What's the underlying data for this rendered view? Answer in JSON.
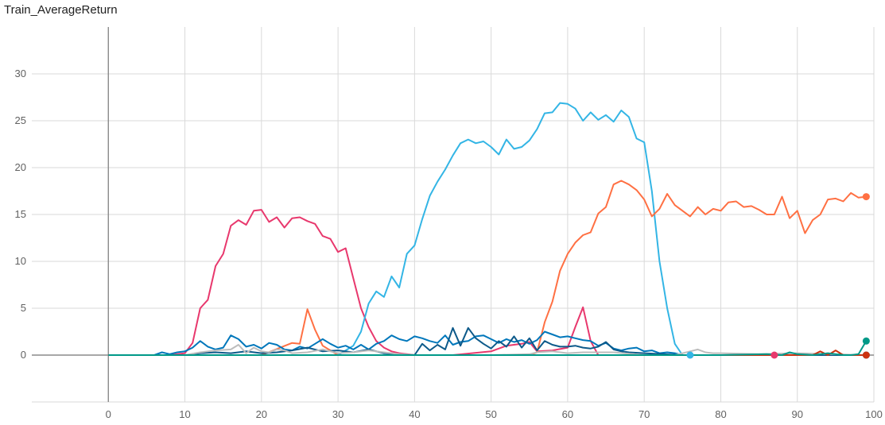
{
  "chart_data": {
    "type": "line",
    "title": "Train_AverageReturn",
    "xlim": [
      -10,
      100
    ],
    "ylim": [
      -5,
      35
    ],
    "x_ticks": [
      "0",
      "10",
      "20",
      "30",
      "40",
      "50",
      "60",
      "70",
      "80",
      "90",
      "100"
    ],
    "y_ticks": [
      "0",
      "5",
      "10",
      "15",
      "20",
      "25",
      "30"
    ],
    "grid": true,
    "series": [
      {
        "color": "#e8386d",
        "x": [
          0,
          5,
          8,
          10,
          11,
          12,
          13,
          14,
          15,
          16,
          17,
          18,
          19,
          20,
          21,
          22,
          23,
          24,
          25,
          26,
          27,
          28,
          29,
          30,
          31,
          32,
          33,
          34,
          35,
          36,
          37,
          38,
          39,
          40,
          45,
          50,
          52,
          54,
          55,
          56,
          58,
          60,
          61,
          62,
          63,
          64,
          65,
          70,
          80,
          87
        ],
        "y": [
          0,
          0,
          0,
          0.2,
          1.3,
          5,
          5.9,
          9.5,
          10.8,
          13.8,
          14.4,
          13.9,
          15.4,
          15.5,
          14.2,
          14.7,
          13.6,
          14.6,
          14.7,
          14.3,
          14.0,
          12.7,
          12.4,
          11.0,
          11.4,
          8.2,
          5.0,
          3.0,
          1.5,
          0.8,
          0.4,
          0.2,
          0.1,
          0,
          0,
          0.4,
          1.0,
          1.2,
          1.4,
          0.4,
          0.5,
          0.8,
          3.0,
          5.1,
          1.5,
          0,
          0,
          0,
          0,
          0
        ]
      },
      {
        "color": "#33b5e5",
        "x": [
          0,
          10,
          20,
          25,
          30,
          31,
          32,
          33,
          34,
          35,
          36,
          37,
          38,
          39,
          40,
          41,
          42,
          43,
          44,
          45,
          46,
          47,
          48,
          49,
          50,
          51,
          52,
          53,
          54,
          55,
          56,
          57,
          58,
          59,
          60,
          61,
          62,
          63,
          64,
          65,
          66,
          67,
          68,
          69,
          70,
          71,
          72,
          73,
          74,
          75,
          76
        ],
        "y": [
          0,
          0,
          0,
          0,
          0,
          0.5,
          1.0,
          2.5,
          5.5,
          6.8,
          6.2,
          8.4,
          7.2,
          10.8,
          11.7,
          14.5,
          17.0,
          18.5,
          19.8,
          21.3,
          22.6,
          23.0,
          22.6,
          22.8,
          22.2,
          21.4,
          23.0,
          22.0,
          22.2,
          22.9,
          24.1,
          25.8,
          25.9,
          26.9,
          26.8,
          26.3,
          25.0,
          25.9,
          25.1,
          25.6,
          24.9,
          26.1,
          25.4,
          23.1,
          22.7,
          17.5,
          10.0,
          5.0,
          1.2,
          0,
          0
        ]
      },
      {
        "color": "#ff7043",
        "x": [
          0,
          20,
          24,
          25,
          26,
          27,
          28,
          30,
          40,
          50,
          55,
          56,
          57,
          58,
          59,
          60,
          61,
          62,
          63,
          64,
          65,
          66,
          67,
          68,
          69,
          70,
          71,
          72,
          73,
          74,
          75,
          76,
          77,
          78,
          79,
          80,
          81,
          82,
          83,
          84,
          85,
          86,
          87,
          88,
          89,
          90,
          91,
          92,
          93,
          94,
          95,
          96,
          97,
          98,
          99
        ],
        "y": [
          0,
          0,
          1.3,
          1.2,
          4.9,
          2.7,
          1.0,
          0,
          0,
          0,
          0,
          0.3,
          3.5,
          5.7,
          9.0,
          10.8,
          12.0,
          12.8,
          13.1,
          15.1,
          15.8,
          18.2,
          18.6,
          18.2,
          17.6,
          16.6,
          14.8,
          15.6,
          17.2,
          16.0,
          15.4,
          14.8,
          15.8,
          15.0,
          15.6,
          15.4,
          16.3,
          16.4,
          15.8,
          15.9,
          15.5,
          15.0,
          15.0,
          16.9,
          14.6,
          15.4,
          13.0,
          14.4,
          15.0,
          16.6,
          16.7,
          16.4,
          17.3,
          16.8,
          16.9
        ]
      },
      {
        "color": "#0077bb",
        "x": [
          0,
          6,
          7,
          8,
          9,
          10,
          11,
          12,
          13,
          14,
          15,
          16,
          17,
          18,
          19,
          20,
          21,
          22,
          23,
          24,
          25,
          26,
          27,
          28,
          29,
          30,
          31,
          32,
          33,
          34,
          35,
          36,
          37,
          38,
          39,
          40,
          41,
          42,
          43,
          44,
          45,
          46,
          47,
          48,
          49,
          50,
          51,
          52,
          53,
          54,
          55,
          56,
          57,
          58,
          59,
          60,
          61,
          62,
          63,
          64,
          65,
          66,
          67,
          68,
          69,
          70,
          71,
          72,
          73,
          74,
          75,
          80,
          90,
          99
        ],
        "y": [
          0,
          0,
          0.3,
          0.1,
          0.3,
          0.4,
          0.8,
          1.5,
          0.9,
          0.6,
          0.8,
          2.1,
          1.7,
          0.9,
          1.1,
          0.7,
          1.3,
          1.1,
          0.6,
          0.5,
          0.9,
          0.7,
          1.2,
          1.7,
          1.2,
          0.8,
          1.0,
          0.6,
          1.1,
          0.6,
          1.2,
          1.5,
          2.1,
          1.7,
          1.5,
          2.0,
          1.8,
          1.5,
          1.3,
          2.1,
          1.1,
          1.4,
          1.5,
          2.0,
          2.1,
          1.7,
          1.3,
          1.7,
          1.4,
          1.6,
          1.2,
          1.6,
          2.5,
          2.2,
          1.9,
          2.0,
          1.8,
          1.6,
          1.5,
          1.0,
          1.3,
          0.7,
          0.5,
          0.7,
          0.8,
          0.4,
          0.5,
          0.2,
          0.3,
          0.2,
          0,
          0,
          0,
          0
        ]
      },
      {
        "color": "#0d5a8a",
        "x": [
          0,
          10,
          12,
          14,
          16,
          18,
          20,
          22,
          24,
          26,
          28,
          30,
          32,
          34,
          36,
          38,
          40,
          41,
          42,
          43,
          44,
          45,
          46,
          47,
          48,
          49,
          50,
          51,
          52,
          53,
          54,
          55,
          56,
          57,
          58,
          59,
          60,
          61,
          62,
          63,
          64,
          65,
          66,
          67,
          68,
          70,
          75,
          99
        ],
        "y": [
          0,
          0,
          0.2,
          0.3,
          0.2,
          0.4,
          0.2,
          0.3,
          0.5,
          0.8,
          0.4,
          0.5,
          0.3,
          0.6,
          0.2,
          0.1,
          0,
          1.2,
          0.5,
          1.1,
          0.6,
          2.9,
          1.0,
          2.9,
          1.8,
          1.2,
          0.7,
          1.5,
          0.9,
          2.0,
          0.8,
          1.8,
          0.5,
          1.5,
          1.1,
          0.9,
          0.9,
          1.0,
          0.8,
          0.7,
          0.9,
          1.4,
          0.6,
          0.4,
          0.3,
          0.2,
          0,
          0
        ]
      },
      {
        "color": "#bdbdbd",
        "x": [
          0,
          10,
          12,
          14,
          16,
          17,
          18,
          19,
          20,
          21,
          22,
          23,
          24,
          26,
          28,
          30,
          32,
          34,
          36,
          38,
          40,
          50,
          55,
          56,
          58,
          60,
          62,
          64,
          66,
          70,
          74,
          76,
          77,
          78,
          79,
          80,
          85,
          90,
          99
        ],
        "y": [
          0,
          0,
          0.3,
          0.5,
          0.6,
          1.1,
          0.2,
          0.8,
          0.4,
          0.3,
          0.6,
          0.5,
          0.2,
          0.3,
          0.6,
          0.2,
          0.3,
          0.5,
          0.3,
          0.1,
          0,
          0,
          0.1,
          0.3,
          0.4,
          0.2,
          0.3,
          0.3,
          0.3,
          0,
          0,
          0.4,
          0.6,
          0.3,
          0.2,
          0.2,
          0.1,
          0.2,
          0
        ]
      },
      {
        "color": "#cc3311",
        "x": [
          0,
          80,
          85,
          90,
          92,
          93,
          94,
          95,
          96,
          97,
          99
        ],
        "y": [
          0,
          0,
          0,
          0,
          0,
          0.4,
          0,
          0.5,
          0,
          0,
          0
        ]
      },
      {
        "color": "#009988",
        "x": [
          0,
          40,
          60,
          80,
          86,
          88,
          89,
          90,
          92,
          94,
          96,
          97,
          98,
          99
        ],
        "y": [
          0,
          0,
          0,
          0,
          0.1,
          0,
          0.3,
          0.1,
          0,
          0.2,
          0,
          0,
          0.1,
          1.5
        ]
      }
    ]
  }
}
